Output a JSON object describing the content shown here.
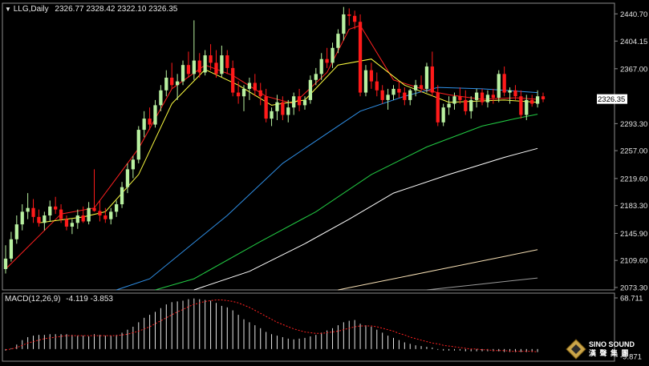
{
  "header": {
    "symbol_label": "LLG,Daily",
    "ohlc_text": "2326.77 2328.42 2322.10 2326.35"
  },
  "macd_header": {
    "label": "MACD(12,26,9)",
    "values_text": "-4.119 -3.853"
  },
  "watermark": {
    "brand": "SINO SOUND",
    "sub": "漢 聲 集 團"
  },
  "colors": {
    "background": "#000000",
    "up_candle": "#b8f0a0",
    "down_candle": "#ff1a1a",
    "ma_fast": "#ff2020",
    "ma_slow": "#ffff40",
    "ma_30": "#2f8fe6",
    "ma_60": "#22cc44",
    "ma_120": "#ffffff",
    "ma_250": "#f5deb3",
    "ma_500": "#999999",
    "macd_hist": "#e6e6e6",
    "macd_signal": "#ff2020"
  },
  "chart_data": [
    {
      "type": "candlestick",
      "price_axis_ticks": [
        "2440.70",
        "2404.15",
        "2367.00",
        "2293.30",
        "2257.00",
        "2219.60",
        "2183.30",
        "2145.90",
        "2109.60",
        "2073.30"
      ],
      "last_price_label": "2326.35",
      "ylim": [
        2070,
        2455
      ],
      "candles": [
        [
          2098,
          2130,
          2092,
          2112
        ],
        [
          2112,
          2148,
          2108,
          2138
        ],
        [
          2138,
          2170,
          2132,
          2158
        ],
        [
          2158,
          2185,
          2150,
          2175
        ],
        [
          2175,
          2200,
          2165,
          2180
        ],
        [
          2180,
          2192,
          2160,
          2168
        ],
        [
          2168,
          2178,
          2155,
          2160
        ],
        [
          2160,
          2175,
          2150,
          2170
        ],
        [
          2170,
          2190,
          2162,
          2182
        ],
        [
          2182,
          2195,
          2172,
          2178
        ],
        [
          2178,
          2185,
          2160,
          2165
        ],
        [
          2165,
          2170,
          2150,
          2155
        ],
        [
          2155,
          2165,
          2145,
          2160
        ],
        [
          2160,
          2178,
          2152,
          2170
        ],
        [
          2170,
          2182,
          2160,
          2162
        ],
        [
          2162,
          2188,
          2158,
          2180
        ],
        [
          2180,
          2232,
          2175,
          2176
        ],
        [
          2176,
          2190,
          2162,
          2170
        ],
        [
          2170,
          2180,
          2160,
          2165
        ],
        [
          2165,
          2180,
          2158,
          2175
        ],
        [
          2175,
          2190,
          2168,
          2185
        ],
        [
          2185,
          2215,
          2180,
          2208
        ],
        [
          2208,
          2240,
          2200,
          2232
        ],
        [
          2232,
          2250,
          2220,
          2245
        ],
        [
          2245,
          2290,
          2240,
          2285
        ],
        [
          2285,
          2310,
          2275,
          2300
        ],
        [
          2300,
          2315,
          2285,
          2292
        ],
        [
          2292,
          2325,
          2288,
          2318
        ],
        [
          2318,
          2345,
          2310,
          2338
        ],
        [
          2338,
          2365,
          2330,
          2355
        ],
        [
          2355,
          2375,
          2340,
          2345
        ],
        [
          2345,
          2360,
          2325,
          2350
        ],
        [
          2350,
          2378,
          2345,
          2372
        ],
        [
          2372,
          2390,
          2355,
          2360
        ],
        [
          2360,
          2432,
          2352,
          2378
        ],
        [
          2378,
          2388,
          2355,
          2362
        ],
        [
          2362,
          2392,
          2358,
          2385
        ],
        [
          2385,
          2400,
          2365,
          2375
        ],
        [
          2375,
          2392,
          2355,
          2360
        ],
        [
          2360,
          2398,
          2356,
          2385
        ],
        [
          2385,
          2392,
          2360,
          2368
        ],
        [
          2368,
          2378,
          2330,
          2335
        ],
        [
          2335,
          2350,
          2320,
          2330
        ],
        [
          2330,
          2345,
          2310,
          2340
        ],
        [
          2340,
          2355,
          2325,
          2348
        ],
        [
          2348,
          2360,
          2330,
          2338
        ],
        [
          2338,
          2348,
          2318,
          2330
        ],
        [
          2330,
          2340,
          2295,
          2300
        ],
        [
          2300,
          2315,
          2290,
          2310
        ],
        [
          2310,
          2332,
          2298,
          2322
        ],
        [
          2322,
          2330,
          2298,
          2305
        ],
        [
          2305,
          2325,
          2295,
          2315
        ],
        [
          2315,
          2335,
          2305,
          2330
        ],
        [
          2330,
          2340,
          2310,
          2318
        ],
        [
          2318,
          2330,
          2312,
          2325
        ],
        [
          2325,
          2358,
          2320,
          2352
        ],
        [
          2352,
          2368,
          2345,
          2360
        ],
        [
          2360,
          2388,
          2352,
          2380
        ],
        [
          2380,
          2395,
          2368,
          2375
        ],
        [
          2375,
          2402,
          2368,
          2395
        ],
        [
          2395,
          2420,
          2388,
          2414
        ],
        [
          2414,
          2450,
          2405,
          2440
        ],
        [
          2440,
          2448,
          2425,
          2438
        ],
        [
          2438,
          2445,
          2420,
          2430
        ],
        [
          2430,
          2440,
          2330,
          2335
        ],
        [
          2335,
          2372,
          2330,
          2365
        ],
        [
          2365,
          2375,
          2340,
          2350
        ],
        [
          2350,
          2362,
          2330,
          2338
        ],
        [
          2338,
          2345,
          2320,
          2325
        ],
        [
          2325,
          2340,
          2312,
          2332
        ],
        [
          2332,
          2345,
          2325,
          2340
        ],
        [
          2340,
          2350,
          2328,
          2335
        ],
        [
          2335,
          2342,
          2318,
          2325
        ],
        [
          2325,
          2340,
          2318,
          2338
        ],
        [
          2338,
          2352,
          2330,
          2345
        ],
        [
          2345,
          2358,
          2335,
          2340
        ],
        [
          2340,
          2375,
          2335,
          2370
        ],
        [
          2370,
          2390,
          2330,
          2335
        ],
        [
          2335,
          2345,
          2290,
          2295
        ],
        [
          2295,
          2320,
          2290,
          2315
        ],
        [
          2315,
          2330,
          2305,
          2320
        ],
        [
          2320,
          2335,
          2312,
          2330
        ],
        [
          2330,
          2342,
          2320,
          2325
        ],
        [
          2325,
          2338,
          2305,
          2310
        ],
        [
          2310,
          2330,
          2300,
          2325
        ],
        [
          2325,
          2340,
          2315,
          2335
        ],
        [
          2335,
          2340,
          2318,
          2322
        ],
        [
          2322,
          2338,
          2315,
          2332
        ],
        [
          2332,
          2340,
          2320,
          2328
        ],
        [
          2328,
          2365,
          2322,
          2360
        ],
        [
          2360,
          2370,
          2330,
          2335
        ],
        [
          2335,
          2342,
          2320,
          2338
        ],
        [
          2338,
          2345,
          2325,
          2330
        ],
        [
          2330,
          2338,
          2300,
          2305
        ],
        [
          2305,
          2332,
          2298,
          2325
        ],
        [
          2325,
          2332,
          2316,
          2320
        ],
        [
          2320,
          2338,
          2315,
          2330
        ],
        [
          2330,
          2335,
          2322,
          2326
        ]
      ],
      "moving_averages": [
        {
          "key": "ma_fast",
          "points": [
            [
              0,
              2098
            ],
            [
              10,
              2172
            ],
            [
              16,
              2180
            ],
            [
              24,
              2260
            ],
            [
              30,
              2340
            ],
            [
              36,
              2372
            ],
            [
              41,
              2358
            ],
            [
              47,
              2330
            ],
            [
              52,
              2320
            ],
            [
              58,
              2362
            ],
            [
              62,
              2420
            ],
            [
              64,
              2425
            ],
            [
              70,
              2352
            ],
            [
              76,
              2338
            ],
            [
              80,
              2332
            ],
            [
              86,
              2326
            ],
            [
              92,
              2328
            ],
            [
              96,
              2326
            ]
          ]
        },
        {
          "key": "ma_slow",
          "points": [
            [
              6,
              2160
            ],
            [
              14,
              2168
            ],
            [
              18,
              2175
            ],
            [
              24,
              2225
            ],
            [
              30,
              2320
            ],
            [
              36,
              2366
            ],
            [
              42,
              2345
            ],
            [
              48,
              2318
            ],
            [
              54,
              2325
            ],
            [
              60,
              2372
            ],
            [
              66,
              2380
            ],
            [
              72,
              2345
            ],
            [
              80,
              2322
            ],
            [
              90,
              2325
            ],
            [
              96,
              2322
            ]
          ]
        },
        {
          "key": "ma_30",
          "points": [
            [
              20,
              2070
            ],
            [
              26,
              2085
            ],
            [
              40,
              2170
            ],
            [
              50,
              2240
            ],
            [
              58,
              2280
            ],
            [
              64,
              2310
            ],
            [
              72,
              2330
            ],
            [
              78,
              2342
            ],
            [
              86,
              2340
            ],
            [
              96,
              2335
            ]
          ]
        },
        {
          "key": "ma_60",
          "points": [
            [
              27,
              2070
            ],
            [
              34,
              2085
            ],
            [
              46,
              2135
            ],
            [
              56,
              2175
            ],
            [
              66,
              2225
            ],
            [
              76,
              2262
            ],
            [
              86,
              2290
            ],
            [
              92,
              2300
            ],
            [
              96,
              2306
            ]
          ]
        },
        {
          "key": "ma_120",
          "points": [
            [
              34,
              2070
            ],
            [
              44,
              2095
            ],
            [
              54,
              2132
            ],
            [
              62,
              2165
            ],
            [
              70,
              2200
            ],
            [
              80,
              2225
            ],
            [
              90,
              2248
            ],
            [
              96,
              2260
            ]
          ]
        },
        {
          "key": "ma_250",
          "points": [
            [
              60,
              2070
            ],
            [
              70,
              2085
            ],
            [
              80,
              2100
            ],
            [
              90,
              2115
            ],
            [
              96,
              2124
            ]
          ]
        },
        {
          "key": "ma_500",
          "points": [
            [
              76,
              2070
            ],
            [
              86,
              2078
            ],
            [
              96,
              2086
            ]
          ]
        }
      ]
    },
    {
      "type": "bar",
      "indicator": "MACD",
      "yaxis_ticks": [
        "68.711",
        "-9.871"
      ],
      "ylim": [
        -9.871,
        68.711
      ],
      "histogram": [
        -2,
        1,
        6,
        12,
        16,
        18,
        19,
        19,
        20,
        20,
        20,
        20,
        19,
        18,
        18,
        17,
        20,
        19,
        18,
        18,
        19,
        22,
        26,
        30,
        36,
        42,
        46,
        50,
        55,
        60,
        63,
        64,
        65,
        67,
        68,
        67,
        66,
        65,
        62,
        58,
        56,
        52,
        46,
        40,
        36,
        32,
        28,
        23,
        20,
        18,
        16,
        14,
        13,
        14,
        15,
        17,
        19,
        22,
        25,
        28,
        32,
        36,
        38,
        39,
        34,
        32,
        30,
        26,
        22,
        18,
        15,
        12,
        9,
        7,
        5,
        4,
        3,
        2,
        -1,
        -2,
        -2,
        -2,
        -2,
        -3,
        -3,
        -3,
        -3,
        -3,
        -3,
        -3,
        -4,
        -4,
        -4,
        -4,
        -4,
        -4,
        -4
      ],
      "signal": [
        -1,
        0,
        2,
        5,
        8,
        10,
        12,
        14,
        15,
        16,
        17,
        18,
        18,
        18,
        18,
        18,
        18,
        18,
        18,
        18,
        18,
        19,
        20,
        22,
        24,
        27,
        30,
        34,
        38,
        42,
        46,
        50,
        53,
        57,
        60,
        62,
        64,
        65,
        66,
        66,
        65,
        64,
        62,
        59,
        56,
        52,
        48,
        44,
        40,
        36,
        33,
        30,
        27,
        25,
        23,
        22,
        21,
        21,
        22,
        23,
        24,
        26,
        28,
        30,
        31,
        31,
        31,
        30,
        28,
        26,
        24,
        21,
        19,
        16,
        14,
        12,
        10,
        8,
        7,
        5,
        4,
        3,
        2,
        1,
        0,
        0,
        -1,
        -1,
        -2,
        -2,
        -2,
        -3,
        -3,
        -3,
        -3,
        -3,
        -4
      ]
    }
  ]
}
